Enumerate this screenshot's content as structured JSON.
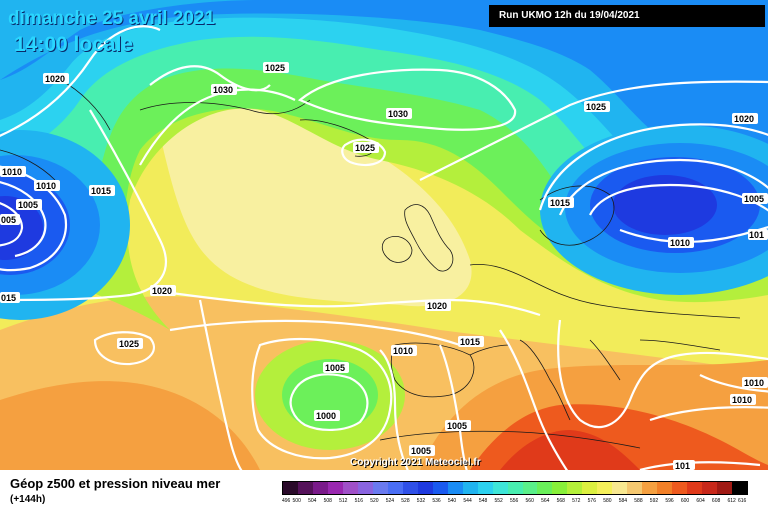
{
  "header": {
    "date": "dimanche 25 avril 2021",
    "time": "14:00 locale",
    "run": "Run UKMO 12h du 19/04/2021"
  },
  "copyright": "Copyright 2021 Meteociel.fr",
  "legend": {
    "title": "Géop z500 et pression niveau mer",
    "subtitle": "(+144h)",
    "scale_labels": [
      "496",
      "500",
      "504",
      "508",
      "512",
      "516",
      "520",
      "524",
      "528",
      "532",
      "536",
      "540",
      "544",
      "548",
      "552",
      "556",
      "560",
      "564",
      "568",
      "572",
      "576",
      "580",
      "584",
      "588",
      "592",
      "596",
      "600",
      "604",
      "608",
      "612",
      "616"
    ],
    "scale_colors": [
      "#2a0a2a",
      "#55125a",
      "#7a1a8a",
      "#9a28b0",
      "#a050c8",
      "#8a64e0",
      "#6a7af0",
      "#4a6ef5",
      "#2f50e8",
      "#1e3ae0",
      "#1a5af0",
      "#1a8cf5",
      "#20b4f0",
      "#2cd2f0",
      "#3ee6d8",
      "#48eeb0",
      "#5af08a",
      "#6af05a",
      "#88f03a",
      "#b4f03a",
      "#dcf040",
      "#f5f05a",
      "#f8e890",
      "#f5c870",
      "#f5a040",
      "#f28028",
      "#ee5a1e",
      "#e03a1a",
      "#c8281a",
      "#a01a14",
      "#000000"
    ]
  },
  "isobars": [
    {
      "label": "1020"
    },
    {
      "label": "1025"
    },
    {
      "label": "1030"
    },
    {
      "label": "1030"
    },
    {
      "label": "1025"
    },
    {
      "label": "1010"
    },
    {
      "label": "1010"
    },
    {
      "label": "1005"
    },
    {
      "label": "005"
    },
    {
      "label": "1015"
    },
    {
      "label": "015"
    },
    {
      "label": "1020"
    },
    {
      "label": "1025"
    },
    {
      "label": "1020"
    },
    {
      "label": "1010"
    },
    {
      "label": "1015"
    },
    {
      "label": "1005"
    },
    {
      "label": "1000"
    },
    {
      "label": "1005"
    },
    {
      "label": "1005"
    },
    {
      "label": "1025"
    },
    {
      "label": "1020"
    },
    {
      "label": "1015"
    },
    {
      "label": "1010"
    },
    {
      "label": "1005"
    },
    {
      "label": "101"
    },
    {
      "label": "1010"
    },
    {
      "label": "1010"
    },
    {
      "label": "101"
    }
  ]
}
